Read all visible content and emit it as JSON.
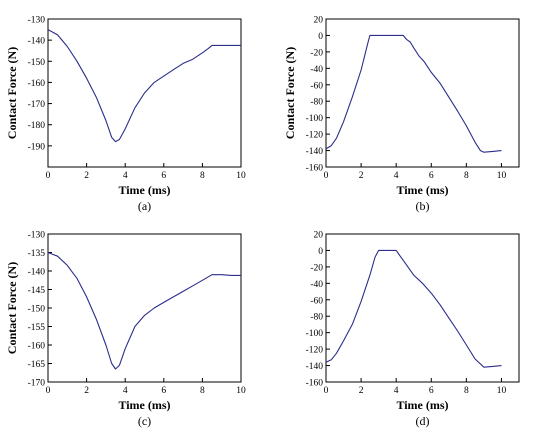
{
  "chart_data": [
    {
      "type": "line",
      "caption": "(a)",
      "xlabel": "Time (ms)",
      "ylabel": "Contact Force (N)",
      "xlim": [
        0,
        10
      ],
      "ylim": [
        -200,
        -130
      ],
      "xticks": [
        "0",
        "2",
        "4",
        "6",
        "8",
        "10"
      ],
      "yticks": [
        "-130",
        "-140",
        "-150",
        "-160",
        "-170",
        "-180",
        "-190"
      ],
      "yticks_values": [
        -130,
        -140,
        -150,
        -160,
        -170,
        -180,
        -190
      ],
      "grid": false,
      "series": [
        {
          "color": "#2b2e8a",
          "x": [
            0,
            0.5,
            1.0,
            1.5,
            2.0,
            2.5,
            3.0,
            3.3,
            3.5,
            3.7,
            4.0,
            4.5,
            5.0,
            5.5,
            6.0,
            6.5,
            7.0,
            7.5,
            8.0,
            8.3,
            8.5,
            9.0,
            9.5,
            10.0
          ],
          "y": [
            -135,
            -137.5,
            -143,
            -150,
            -158,
            -167,
            -178,
            -186,
            -188,
            -187,
            -182,
            -172,
            -165,
            -160,
            -157,
            -154,
            -151,
            -149,
            -146,
            -144,
            -142.5,
            -142.5,
            -142.5,
            -142.5
          ]
        }
      ]
    },
    {
      "type": "line",
      "caption": "(b)",
      "xlabel": "Time (ms)",
      "ylabel": "Contact Force (N)",
      "xlim": [
        0,
        11
      ],
      "ylim": [
        -160,
        20
      ],
      "xticks": [
        "0",
        "2",
        "4",
        "6",
        "8",
        "10"
      ],
      "yticks": [
        "20",
        "0",
        "-20",
        "-40",
        "-60",
        "-80",
        "-100",
        "-120",
        "-140",
        "-160"
      ],
      "yticks_values": [
        20,
        0,
        -20,
        -40,
        -60,
        -80,
        -100,
        -120,
        -140,
        -160
      ],
      "grid": false,
      "series": [
        {
          "color": "#2b2e8a",
          "x": [
            0,
            0.3,
            0.6,
            1.0,
            1.5,
            2.0,
            2.4,
            2.5,
            3.0,
            3.5,
            4.0,
            4.4,
            4.6,
            4.8,
            5.0,
            5.3,
            5.6,
            6.0,
            6.5,
            7.0,
            7.5,
            8.0,
            8.5,
            8.8,
            9.0,
            9.5,
            10.0
          ],
          "y": [
            -138,
            -134,
            -125,
            -105,
            -75,
            -42,
            -8,
            0,
            0,
            0,
            0,
            0,
            -5,
            -8,
            -15,
            -25,
            -32,
            -45,
            -58,
            -75,
            -92,
            -110,
            -130,
            -140,
            -142,
            -141,
            -140
          ]
        }
      ]
    },
    {
      "type": "line",
      "caption": "(c)",
      "xlabel": "Time (ms)",
      "ylabel": "Contact Force (N)",
      "xlim": [
        0,
        10
      ],
      "ylim": [
        -170,
        -130
      ],
      "xticks": [
        "0",
        "2",
        "4",
        "6",
        "8",
        "10"
      ],
      "yticks": [
        "-130",
        "-135",
        "-140",
        "-145",
        "-150",
        "-155",
        "-160",
        "-165",
        "-170"
      ],
      "yticks_values": [
        -130,
        -135,
        -140,
        -145,
        -150,
        -155,
        -160,
        -165,
        -170
      ],
      "grid": false,
      "series": [
        {
          "color": "#2b2e8a",
          "x": [
            0,
            0.5,
            1.0,
            1.5,
            2.0,
            2.5,
            3.0,
            3.3,
            3.5,
            3.7,
            4.0,
            4.5,
            5.0,
            5.5,
            6.0,
            6.5,
            7.0,
            7.5,
            8.0,
            8.5,
            9.0,
            9.5,
            10.0
          ],
          "y": [
            -135,
            -136,
            -138.5,
            -142,
            -147,
            -153,
            -160,
            -165,
            -166.5,
            -165.5,
            -161,
            -155,
            -152,
            -150,
            -148.5,
            -147,
            -145.5,
            -144,
            -142.5,
            -141,
            -141,
            -141.2,
            -141.2
          ]
        }
      ]
    },
    {
      "type": "line",
      "caption": "(d)",
      "xlabel": "Time (ms)",
      "ylabel": "",
      "xlim": [
        0,
        11
      ],
      "ylim": [
        -160,
        20
      ],
      "xticks": [
        "0",
        "2",
        "4",
        "6",
        "8",
        "10"
      ],
      "yticks": [
        "20",
        "0",
        "-20",
        "-40",
        "-60",
        "-80",
        "-100",
        "-120",
        "-140",
        "-160"
      ],
      "yticks_values": [
        20,
        0,
        -20,
        -40,
        -60,
        -80,
        -100,
        -120,
        -140,
        -160
      ],
      "grid": false,
      "series": [
        {
          "color": "#2b2e8a",
          "x": [
            0,
            0.3,
            0.6,
            1.0,
            1.5,
            2.0,
            2.5,
            2.8,
            3.0,
            3.5,
            4.0,
            4.2,
            4.4,
            4.6,
            4.8,
            5.0,
            5.5,
            6.0,
            6.5,
            7.0,
            7.5,
            8.0,
            8.5,
            9.0,
            9.5,
            10.0
          ],
          "y": [
            -136,
            -133,
            -125,
            -110,
            -90,
            -62,
            -30,
            -8,
            0,
            0,
            0,
            -6,
            -12,
            -18,
            -24,
            -30,
            -40,
            -52,
            -66,
            -82,
            -98,
            -115,
            -132,
            -142,
            -141,
            -140
          ]
        }
      ]
    }
  ]
}
